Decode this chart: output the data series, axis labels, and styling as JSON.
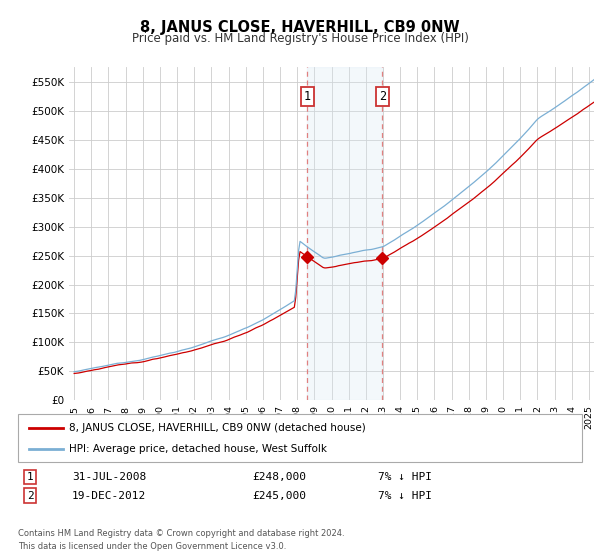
{
  "title": "8, JANUS CLOSE, HAVERHILL, CB9 0NW",
  "subtitle": "Price paid vs. HM Land Registry's House Price Index (HPI)",
  "ylabel_ticks": [
    "£0",
    "£50K",
    "£100K",
    "£150K",
    "£200K",
    "£250K",
    "£300K",
    "£350K",
    "£400K",
    "£450K",
    "£500K",
    "£550K"
  ],
  "ytick_values": [
    0,
    50000,
    100000,
    150000,
    200000,
    250000,
    300000,
    350000,
    400000,
    450000,
    500000,
    550000
  ],
  "ylim": [
    0,
    575000
  ],
  "xlim_start": 1994.7,
  "xlim_end": 2025.3,
  "marker1_x": 2008.58,
  "marker1_y": 248000,
  "marker1_label": "31-JUL-2008",
  "marker1_price": "£248,000",
  "marker1_hpi": "7% ↓ HPI",
  "marker2_x": 2012.97,
  "marker2_y": 245000,
  "marker2_label": "19-DEC-2012",
  "marker2_price": "£245,000",
  "marker2_hpi": "7% ↓ HPI",
  "line1_color": "#cc0000",
  "line2_color": "#7bafd4",
  "marker_fill": "#cc0000",
  "shade_color": "#d8e8f5",
  "dashed_color": "#e08080",
  "legend_line1": "8, JANUS CLOSE, HAVERHILL, CB9 0NW (detached house)",
  "legend_line2": "HPI: Average price, detached house, West Suffolk",
  "footnote": "Contains HM Land Registry data © Crown copyright and database right 2024.\nThis data is licensed under the Open Government Licence v3.0.",
  "background_color": "#ffffff",
  "grid_color": "#cccccc"
}
